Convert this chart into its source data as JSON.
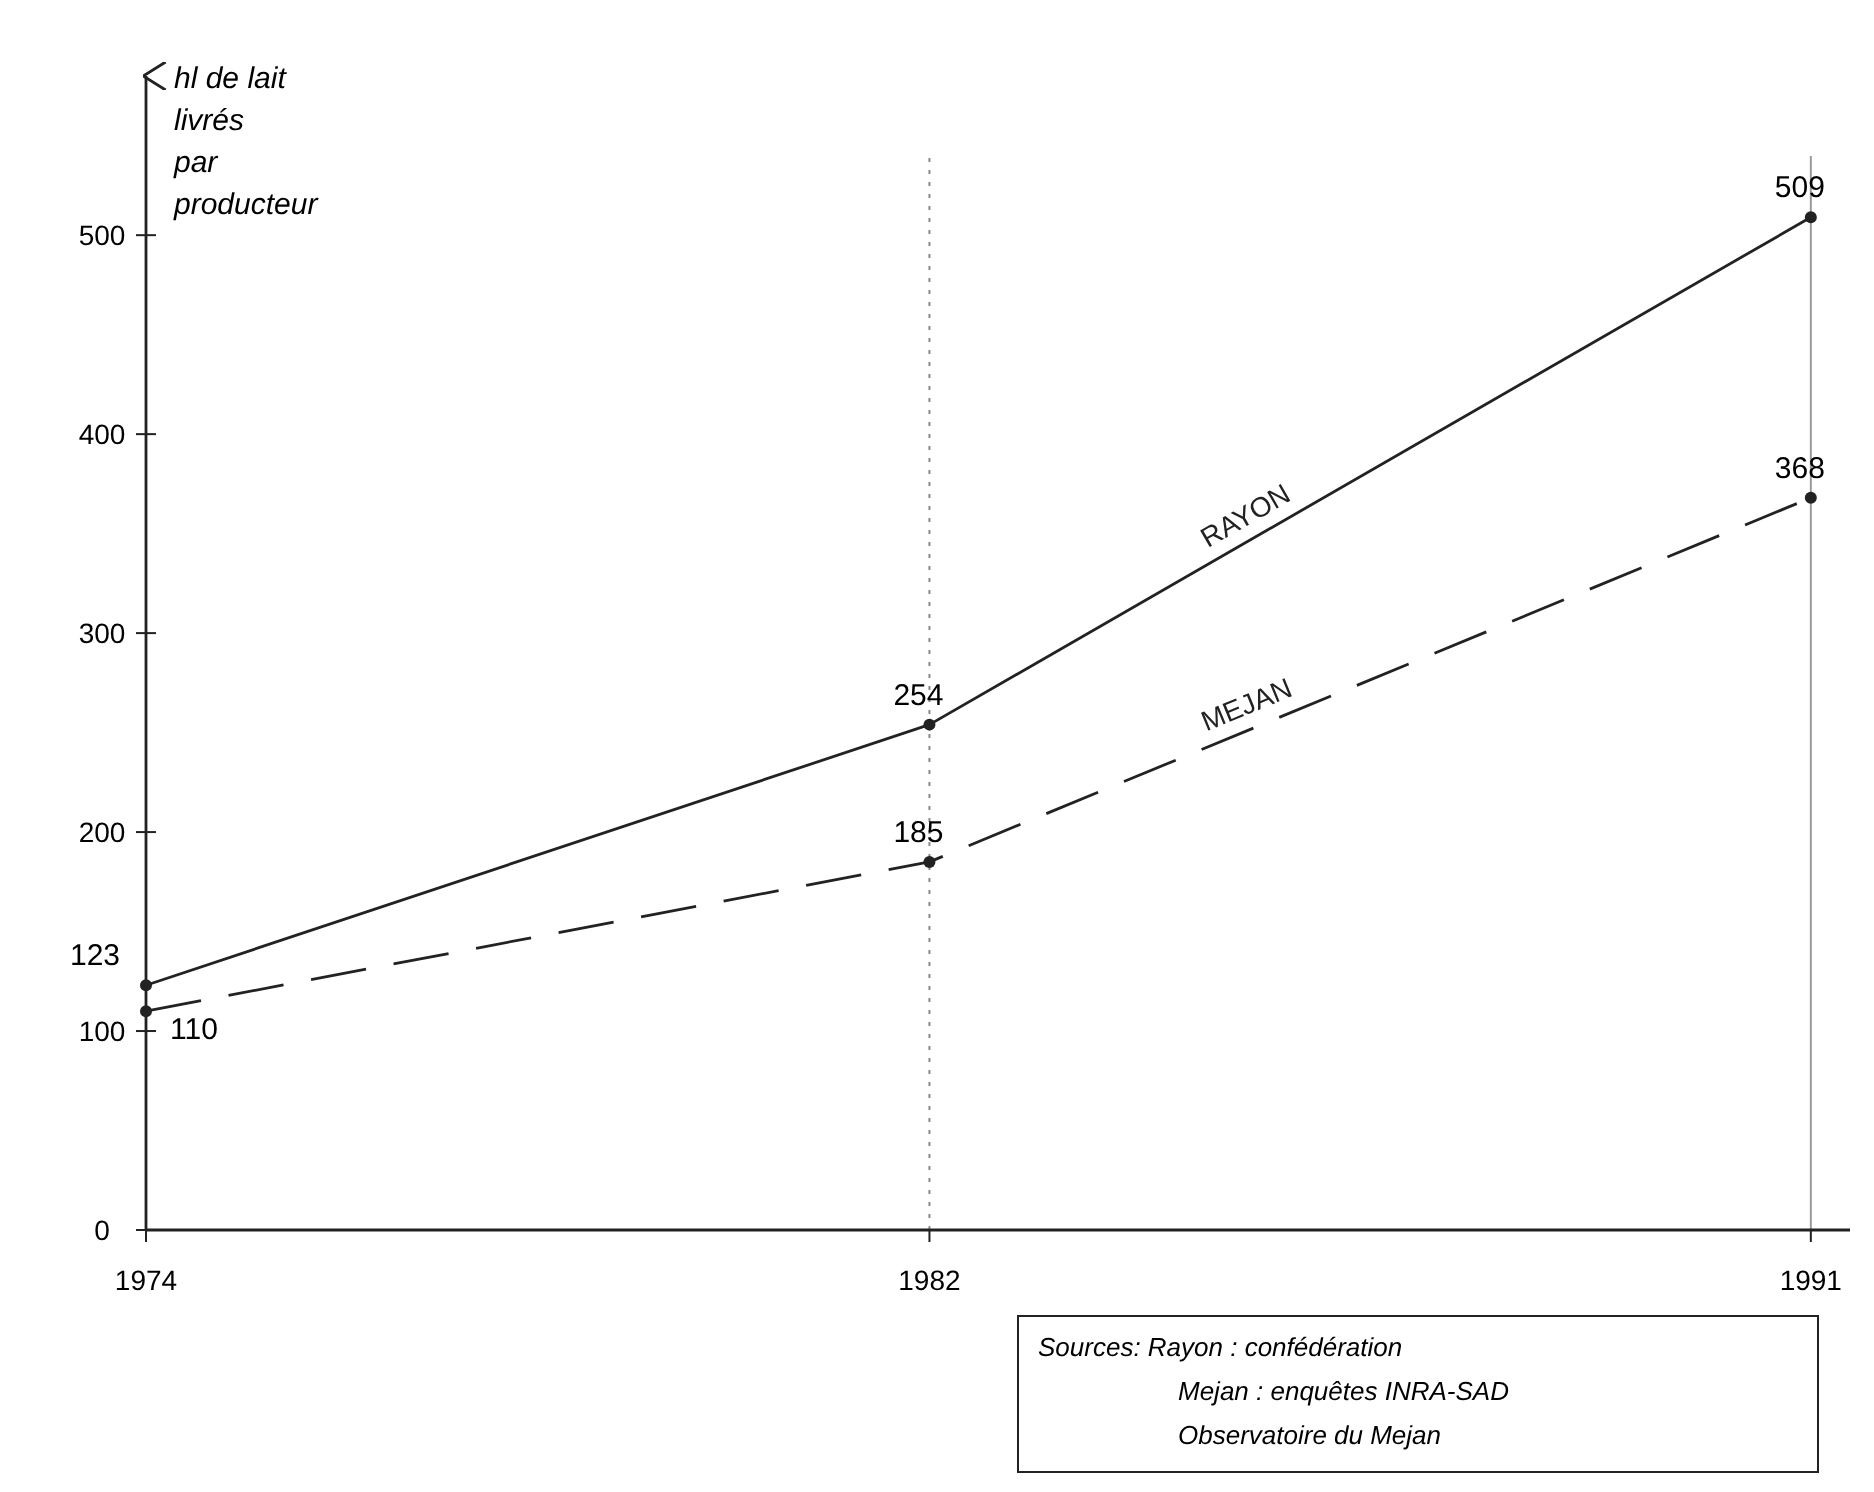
{
  "chart_data": {
    "type": "line",
    "ylabel": "hl de lait livrés par producteur",
    "x": [
      1974,
      1982,
      1991
    ],
    "series": [
      {
        "name": "RAYON",
        "color": "#222222",
        "values": [
          123,
          254,
          509
        ],
        "line_style": "solid"
      },
      {
        "name": "MEJAN",
        "color": "#222222",
        "values": [
          110,
          185,
          368
        ],
        "line_style": "dashed"
      }
    ],
    "xlim": [
      1974,
      1991.4
    ],
    "xticks": [
      1974,
      1982,
      1991
    ],
    "ylim": [
      0,
      580
    ],
    "yticks": [
      0,
      100,
      200,
      300,
      400,
      500
    ],
    "ref_lines": [
      {
        "axis": "x",
        "value": 1982,
        "line_style": "dotted",
        "color": "#888888"
      },
      {
        "axis": "x",
        "value": 1991,
        "line_style": "solid",
        "color": "#999999"
      }
    ],
    "data_labels": true,
    "marker": "circle",
    "grid": false,
    "annotations": [
      "Sources: Rayon : confédération",
      "Mejan : enquêtes INRA-SAD",
      "Observatoire du Mejan"
    ]
  }
}
